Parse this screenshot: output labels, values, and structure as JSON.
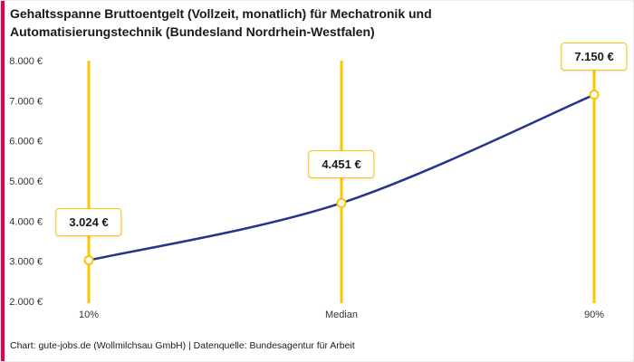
{
  "chart_data": {
    "type": "line",
    "title": "Gehaltsspanne Bruttoentgelt (Vollzeit, monatlich) für Mechatronik und Automatisierungstechnik (Bundesland Nordrhein-Westfalen)",
    "categories": [
      "10%",
      "Median",
      "90%"
    ],
    "values": [
      3024,
      4451,
      7150
    ],
    "value_labels": [
      "3.024 €",
      "4.451 €",
      "7.150 €"
    ],
    "ylim": [
      2000,
      8000
    ],
    "yticks": [
      {
        "value": 2000,
        "label": "2.000 €"
      },
      {
        "value": 3000,
        "label": "3.000 €"
      },
      {
        "value": 4000,
        "label": "4.000 €"
      },
      {
        "value": 5000,
        "label": "5.000 €"
      },
      {
        "value": 6000,
        "label": "6.000 €"
      },
      {
        "value": 7000,
        "label": "7.000 €"
      },
      {
        "value": 8000,
        "label": "8.000 €"
      }
    ],
    "grid": "off",
    "legend": "none",
    "colors": {
      "line": "#26348c",
      "percentile_line": "#fdc500",
      "marker_stroke": "#fdc500",
      "label_border": "#fdc500",
      "accent_bar": "#e40045",
      "axis_text": "#333333"
    }
  },
  "footer": {
    "credit": "Chart: gute-jobs.de (Wollmilchsau GmbH) | Datenquelle: Bundesagentur für Arbeit"
  }
}
